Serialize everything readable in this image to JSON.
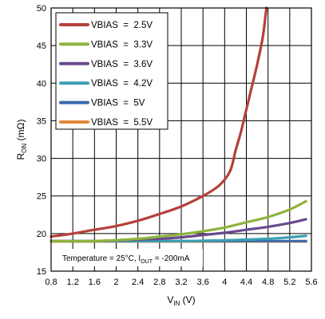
{
  "chart_data": {
    "type": "line",
    "xlabel": {
      "main": "V",
      "sub": "IN",
      "suffix": " (V)"
    },
    "ylabel": {
      "main": "R",
      "sub": "ON",
      "suffix": " (mΩ)"
    },
    "xlim": [
      0.8,
      5.6
    ],
    "ylim": [
      15,
      50
    ],
    "xticks": [
      "0.8",
      "1.2",
      "1.6",
      "2",
      "2.4",
      "2.8",
      "3.2",
      "3.6",
      "4",
      "4.4",
      "4.8",
      "5.2",
      "5.6"
    ],
    "yticks": [
      "15",
      "20",
      "25",
      "30",
      "35",
      "40",
      "45",
      "50"
    ],
    "grid": true,
    "legend_position": "top-left",
    "annotation": {
      "part1": "Temperature = 25°C, I",
      "sub": "OUT",
      "part2": " = -200mA"
    },
    "series": [
      {
        "name": "VBIAS  =  2.5V",
        "color": "#b5403a",
        "x": [
          0.8,
          1.2,
          1.6,
          2.0,
          2.4,
          2.8,
          3.2,
          3.6,
          3.9,
          4.1,
          4.2,
          4.3,
          4.4,
          4.5,
          4.6,
          4.7,
          4.75,
          4.77
        ],
        "y": [
          19.6,
          20.0,
          20.5,
          21.0,
          21.7,
          22.6,
          23.6,
          25.0,
          26.4,
          28.3,
          31.0,
          33.5,
          36.5,
          39.5,
          42.5,
          46.0,
          48.8,
          50.0
        ]
      },
      {
        "name": "VBIAS  =  3.3V",
        "color": "#8db33e",
        "x": [
          0.8,
          1.6,
          2.4,
          2.8,
          3.2,
          3.6,
          4.0,
          4.4,
          4.8,
          5.2,
          5.5
        ],
        "y": [
          19.0,
          19.0,
          19.3,
          19.6,
          19.9,
          20.3,
          20.8,
          21.5,
          22.2,
          23.2,
          24.3
        ]
      },
      {
        "name": "VBIAS  =  3.6V",
        "color": "#6a4a8e",
        "x": [
          0.8,
          1.6,
          2.4,
          2.8,
          3.2,
          3.6,
          4.0,
          4.4,
          4.8,
          5.2,
          5.5
        ],
        "y": [
          19.0,
          19.0,
          19.2,
          19.3,
          19.5,
          19.8,
          20.1,
          20.5,
          20.9,
          21.4,
          21.9
        ]
      },
      {
        "name": "VBIAS  =  4.2V",
        "color": "#3a9fb0",
        "x": [
          0.8,
          1.6,
          2.4,
          3.2,
          4.0,
          4.4,
          4.8,
          5.2,
          5.5
        ],
        "y": [
          19.0,
          19.0,
          19.0,
          19.0,
          19.1,
          19.2,
          19.3,
          19.5,
          19.7
        ]
      },
      {
        "name": "VBIAS  =  5V",
        "color": "#3b68a8",
        "x": [
          0.8,
          2.0,
          3.2,
          4.4,
          5.5
        ],
        "y": [
          19.0,
          19.0,
          19.0,
          19.0,
          19.0
        ]
      },
      {
        "name": "VBIAS  =  5.5V",
        "color": "#e0853a",
        "x": [
          0.8,
          2.0,
          3.2,
          4.4,
          5.5
        ],
        "y": [
          18.95,
          18.95,
          18.95,
          18.95,
          18.95
        ]
      }
    ]
  }
}
